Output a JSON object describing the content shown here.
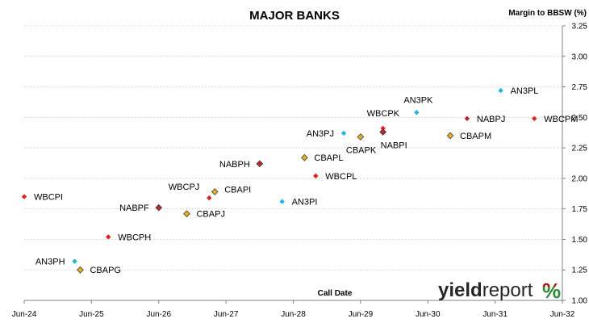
{
  "chart_data": {
    "type": "scatter",
    "title": "MAJOR BANKS",
    "xlabel": "Call Date",
    "ylabel": "Margin to BBSW (%)",
    "xlim": [
      "2024-06",
      "2032-06"
    ],
    "ylim": [
      1.0,
      3.25
    ],
    "x_ticks": [
      "Jun-24",
      "Jun-25",
      "Jun-26",
      "Jun-27",
      "Jun-28",
      "Jun-29",
      "Jun-30",
      "Jun-31",
      "Jun-32"
    ],
    "y_ticks": [
      "1.00",
      "1.25",
      "1.50",
      "1.75",
      "2.00",
      "2.25",
      "2.50",
      "2.75",
      "3.00",
      "3.25"
    ],
    "grid": "y",
    "colors": {
      "WBC": "#e02020",
      "ANZ": "#1fb4e6",
      "CBA": "#e6b020",
      "NAB": "#c0242a"
    },
    "points": [
      {
        "label": "WBCPI",
        "x": "2024-06",
        "y": 1.85,
        "bank": "WBC",
        "marker": "diamond"
      },
      {
        "label": "AN3PH",
        "x": "2025-03",
        "y": 1.32,
        "bank": "ANZ",
        "marker": "diamond"
      },
      {
        "label": "CBAPG",
        "x": "2025-04",
        "y": 1.25,
        "bank": "CBA",
        "marker": "diamond-outline"
      },
      {
        "label": "WBCPH",
        "x": "2025-09",
        "y": 1.52,
        "bank": "WBC",
        "marker": "diamond"
      },
      {
        "label": "NABPF",
        "x": "2026-06",
        "y": 1.76,
        "bank": "NAB",
        "marker": "diamond-outline"
      },
      {
        "label": "CBAPJ",
        "x": "2026-11",
        "y": 1.71,
        "bank": "CBA",
        "marker": "diamond-outline"
      },
      {
        "label": "WBCPJ",
        "x": "2027-03",
        "y": 1.84,
        "bank": "WBC",
        "marker": "diamond"
      },
      {
        "label": "CBAPI",
        "x": "2027-04",
        "y": 1.89,
        "bank": "CBA",
        "marker": "diamond-outline"
      },
      {
        "label": "NABPH",
        "x": "2027-12",
        "y": 2.12,
        "bank": "NAB",
        "marker": "diamond-outline"
      },
      {
        "label": "AN3PI",
        "x": "2028-04",
        "y": 1.81,
        "bank": "ANZ",
        "marker": "diamond"
      },
      {
        "label": "CBAPL",
        "x": "2028-08",
        "y": 2.17,
        "bank": "CBA",
        "marker": "diamond-outline"
      },
      {
        "label": "WBCPL",
        "x": "2028-10",
        "y": 2.02,
        "bank": "WBC",
        "marker": "diamond"
      },
      {
        "label": "AN3PJ",
        "x": "2029-03",
        "y": 2.37,
        "bank": "ANZ",
        "marker": "diamond"
      },
      {
        "label": "CBAPK",
        "x": "2029-06",
        "y": 2.34,
        "bank": "CBA",
        "marker": "diamond-outline"
      },
      {
        "label": "WBCPK",
        "x": "2029-10",
        "y": 2.41,
        "bank": "WBC",
        "marker": "diamond"
      },
      {
        "label": "NABPI",
        "x": "2029-10",
        "y": 2.38,
        "bank": "NAB",
        "marker": "diamond-outline"
      },
      {
        "label": "AN3PK",
        "x": "2030-04",
        "y": 2.54,
        "bank": "ANZ",
        "marker": "diamond"
      },
      {
        "label": "CBAPM",
        "x": "2030-10",
        "y": 2.35,
        "bank": "CBA",
        "marker": "diamond-outline"
      },
      {
        "label": "NABPJ",
        "x": "2031-01",
        "y": 2.49,
        "bank": "NAB",
        "marker": "diamond"
      },
      {
        "label": "AN3PL",
        "x": "2031-07",
        "y": 2.72,
        "bank": "ANZ",
        "marker": "diamond"
      },
      {
        "label": "WBCPM",
        "x": "2032-01",
        "y": 2.49,
        "bank": "WBC",
        "marker": "diamond"
      }
    ]
  },
  "logo": {
    "part_a": "yield",
    "part_b": "report",
    "symbol": "%",
    "colors": {
      "text": "#262626",
      "pct_red": "#c00000",
      "pct_green": "#2e8b3a"
    }
  }
}
